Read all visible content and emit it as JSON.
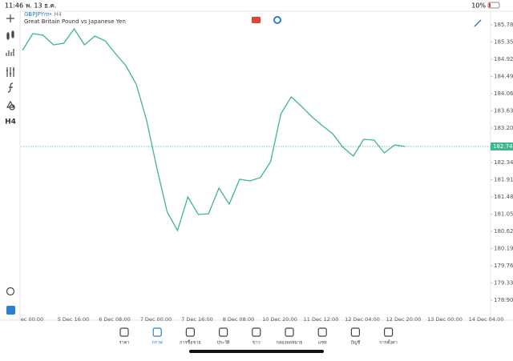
{
  "status_bar": {
    "time": "11:46",
    "date": "พ. 13 ธ.ค.",
    "battery": "10%"
  },
  "toolbar": {
    "timeframe": "H4"
  },
  "chart": {
    "type": "line",
    "symbol": "GBPJPYm",
    "period": "• H4",
    "description": "Great Britain Pound vs Japanese Yen",
    "color": "#3fb68b",
    "values": [
      185.14,
      185.56,
      185.52,
      185.28,
      185.32,
      185.68,
      185.28,
      185.5,
      185.38,
      185.06,
      184.76,
      184.3,
      183.4,
      182.2,
      181.1,
      180.64,
      181.48,
      181.04,
      181.06,
      181.7,
      181.3,
      181.92,
      181.88,
      181.96,
      182.36,
      183.56,
      183.98,
      183.74,
      183.48,
      183.26,
      183.06,
      182.72,
      182.5,
      182.92,
      182.9,
      182.58,
      182.78,
      182.74
    ],
    "ylim": [
      178.54,
      186.12
    ],
    "yticks": [
      {
        "value": 185.78,
        "label": "185.780"
      },
      {
        "value": 185.35,
        "label": "185.350"
      },
      {
        "value": 184.92,
        "label": "184.920"
      },
      {
        "value": 184.49,
        "label": "184.490"
      },
      {
        "value": 184.06,
        "label": "184.060"
      },
      {
        "value": 183.63,
        "label": "183.630"
      },
      {
        "value": 183.2,
        "label": "183.200"
      },
      {
        "value": 182.34,
        "label": "182.340"
      },
      {
        "value": 181.91,
        "label": "181.910"
      },
      {
        "value": 181.48,
        "label": "181.480"
      },
      {
        "value": 181.05,
        "label": "181.050"
      },
      {
        "value": 180.62,
        "label": "180.620"
      },
      {
        "value": 180.19,
        "label": "180.190"
      },
      {
        "value": 179.76,
        "label": "179.760"
      },
      {
        "value": 179.33,
        "label": "179.330"
      },
      {
        "value": 178.9,
        "label": "178.900"
      }
    ],
    "current_price": {
      "value": 182.74,
      "label": "182.740"
    },
    "x_labels": [
      "ec 00:00",
      "5 Dec 16:00",
      "6 Dec 08:00",
      "7 Dec 00:00",
      "7 Dec 16:00",
      "8 Dec 08:00",
      "10 Dec 20:00",
      "11 Dec 12:00",
      "12 Dec 04:00",
      "12 Dec 20:00",
      "13 Dec 00:00",
      "14 Dec 04:00"
    ]
  },
  "tabs": [
    "ราคา",
    "กราฟ",
    "การซื้อขาย",
    "ประวัติ",
    "ข่าว",
    "กล่องจดหมาย",
    "แชท",
    "บัญชี",
    "การตั้งค่า"
  ],
  "active_tab": 1
}
